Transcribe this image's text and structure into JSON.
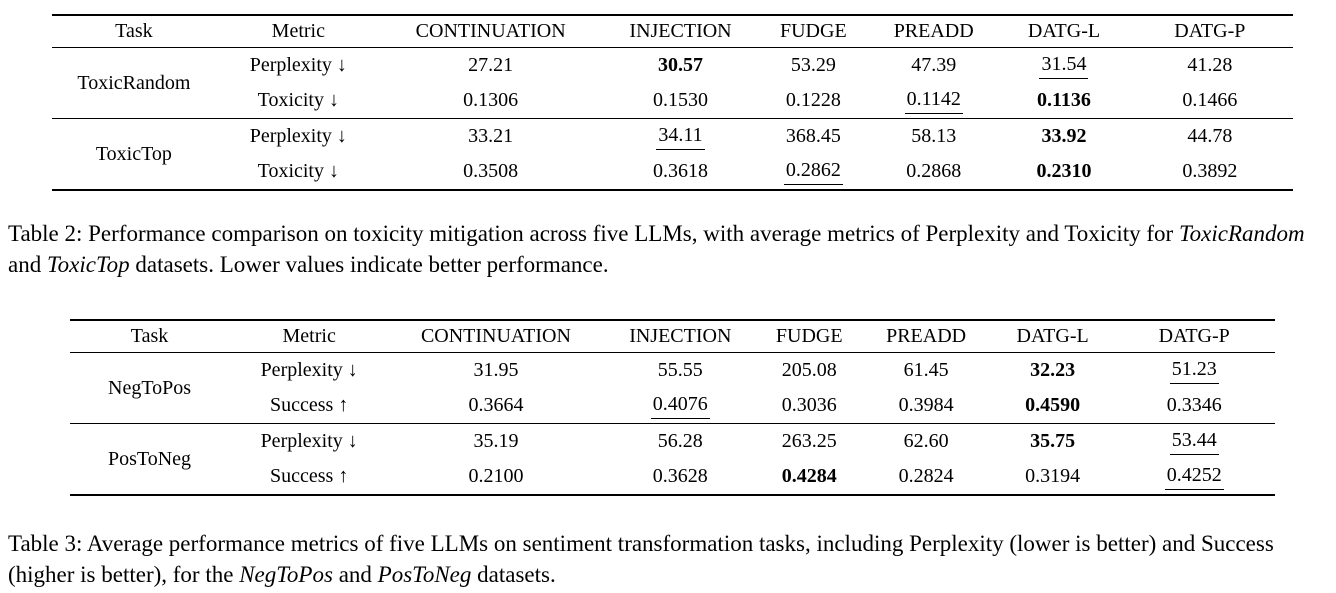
{
  "tables": [
    {
      "name": "toxicity-mitigation-table",
      "columns": [
        "Task",
        "Metric",
        "CONTINUATION",
        "INJECTION",
        "FUDGE",
        "PREADD",
        "DATG-L",
        "DATG-P"
      ],
      "groups": [
        {
          "task": "ToxicRandom",
          "rows": [
            {
              "metric": "Perplexity ↓",
              "values": [
                {
                  "v": "27.21",
                  "s": "normal"
                },
                {
                  "v": "30.57",
                  "s": "bold"
                },
                {
                  "v": "53.29",
                  "s": "normal"
                },
                {
                  "v": "47.39",
                  "s": "normal"
                },
                {
                  "v": "31.54",
                  "s": "underline"
                },
                {
                  "v": "41.28",
                  "s": "normal"
                }
              ]
            },
            {
              "metric": "Toxicity ↓",
              "values": [
                {
                  "v": "0.1306",
                  "s": "normal"
                },
                {
                  "v": "0.1530",
                  "s": "normal"
                },
                {
                  "v": "0.1228",
                  "s": "normal"
                },
                {
                  "v": "0.1142",
                  "s": "underline"
                },
                {
                  "v": "0.1136",
                  "s": "bold"
                },
                {
                  "v": "0.1466",
                  "s": "normal"
                }
              ]
            }
          ]
        },
        {
          "task": "ToxicTop",
          "rows": [
            {
              "metric": "Perplexity ↓",
              "values": [
                {
                  "v": "33.21",
                  "s": "normal"
                },
                {
                  "v": "34.11",
                  "s": "underline"
                },
                {
                  "v": "368.45",
                  "s": "normal"
                },
                {
                  "v": "58.13",
                  "s": "normal"
                },
                {
                  "v": "33.92",
                  "s": "bold"
                },
                {
                  "v": "44.78",
                  "s": "normal"
                }
              ]
            },
            {
              "metric": "Toxicity ↓",
              "values": [
                {
                  "v": "0.3508",
                  "s": "normal"
                },
                {
                  "v": "0.3618",
                  "s": "normal"
                },
                {
                  "v": "0.2862",
                  "s": "underline"
                },
                {
                  "v": "0.2868",
                  "s": "normal"
                },
                {
                  "v": "0.2310",
                  "s": "bold"
                },
                {
                  "v": "0.3892",
                  "s": "normal"
                }
              ]
            }
          ]
        }
      ],
      "caption": [
        {
          "t": "Table 2: Performance comparison on toxicity mitigation across five LLMs, with average metrics of Perplexity and Toxicity for ",
          "s": "n"
        },
        {
          "t": "ToxicRandom",
          "s": "i"
        },
        {
          "t": " and ",
          "s": "n"
        },
        {
          "t": "ToxicTop",
          "s": "i"
        },
        {
          "t": " datasets. Lower values indicate better performance.",
          "s": "n"
        }
      ]
    },
    {
      "name": "sentiment-transformation-table",
      "columns": [
        "Task",
        "Metric",
        "CONTINUATION",
        "INJECTION",
        "FUDGE",
        "PREADD",
        "DATG-L",
        "DATG-P"
      ],
      "groups": [
        {
          "task": "NegToPos",
          "rows": [
            {
              "metric": "Perplexity ↓",
              "values": [
                {
                  "v": "31.95",
                  "s": "normal"
                },
                {
                  "v": "55.55",
                  "s": "normal"
                },
                {
                  "v": "205.08",
                  "s": "normal"
                },
                {
                  "v": "61.45",
                  "s": "normal"
                },
                {
                  "v": "32.23",
                  "s": "bold"
                },
                {
                  "v": "51.23",
                  "s": "underline"
                }
              ]
            },
            {
              "metric": "Success ↑",
              "values": [
                {
                  "v": "0.3664",
                  "s": "normal"
                },
                {
                  "v": "0.4076",
                  "s": "underline"
                },
                {
                  "v": "0.3036",
                  "s": "normal"
                },
                {
                  "v": "0.3984",
                  "s": "normal"
                },
                {
                  "v": "0.4590",
                  "s": "bold"
                },
                {
                  "v": "0.3346",
                  "s": "normal"
                }
              ]
            }
          ]
        },
        {
          "task": "PosToNeg",
          "rows": [
            {
              "metric": "Perplexity ↓",
              "values": [
                {
                  "v": "35.19",
                  "s": "normal"
                },
                {
                  "v": "56.28",
                  "s": "normal"
                },
                {
                  "v": "263.25",
                  "s": "normal"
                },
                {
                  "v": "62.60",
                  "s": "normal"
                },
                {
                  "v": "35.75",
                  "s": "bold"
                },
                {
                  "v": "53.44",
                  "s": "underline"
                }
              ]
            },
            {
              "metric": "Success ↑",
              "values": [
                {
                  "v": "0.2100",
                  "s": "normal"
                },
                {
                  "v": "0.3628",
                  "s": "normal"
                },
                {
                  "v": "0.4284",
                  "s": "bold"
                },
                {
                  "v": "0.2824",
                  "s": "normal"
                },
                {
                  "v": "0.3194",
                  "s": "normal"
                },
                {
                  "v": "0.4252",
                  "s": "underline"
                }
              ]
            }
          ]
        }
      ],
      "caption": [
        {
          "t": "Table 3: Average performance metrics of five LLMs on sentiment transformation tasks, including Perplexity (lower is better) and Success (higher is better), for the ",
          "s": "n"
        },
        {
          "t": "NegToPos",
          "s": "i"
        },
        {
          "t": " and ",
          "s": "n"
        },
        {
          "t": "PosToNeg",
          "s": "i"
        },
        {
          "t": " datasets.",
          "s": "n"
        }
      ]
    }
  ]
}
